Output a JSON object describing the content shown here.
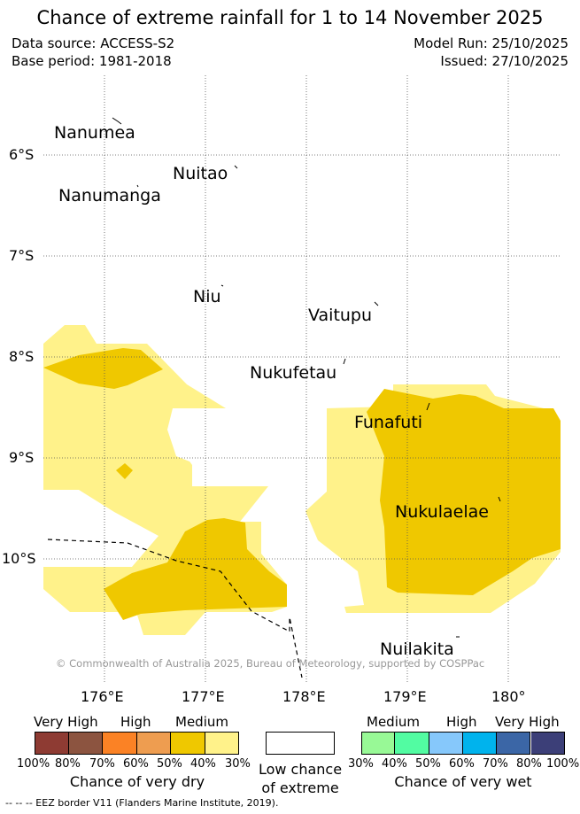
{
  "title": "Chance of extreme rainfall for 1 to 14 November 2025",
  "meta": {
    "data_source": "Data source: ACCESS-S2",
    "base_period": "Base period: 1981-2018",
    "model_run": "Model Run: 25/10/2025",
    "issued": "Issued: 27/10/2025"
  },
  "axes": {
    "lat_labels": [
      "6°S",
      "7°S",
      "8°S",
      "9°S",
      "10°S"
    ],
    "lon_labels": [
      "176°E",
      "177°E",
      "178°E",
      "179°E",
      "180°"
    ]
  },
  "places": [
    "Nanumea",
    "Nuitao",
    "Nanumanga",
    "Niu",
    "Vaitupu",
    "Nukufetau",
    "Funafuti",
    "Nukulaelae",
    "Nuilakita"
  ],
  "copyright": "© Commonwealth of Australia 2025, Bureau of Meteorology, supported by COSPPac",
  "legend": {
    "dry": {
      "levels": [
        "Very High",
        "High",
        "Medium"
      ],
      "ticks": [
        "100%",
        "80%",
        "70%",
        "60%",
        "50%",
        "40%",
        "30%"
      ],
      "colors": [
        "#8e3b33",
        "#8c5440",
        "#fb8225",
        "#ee9d50",
        "#efc800",
        "#fff28a"
      ],
      "caption": "Chance of very dry"
    },
    "low": {
      "caption_line1": "Low chance",
      "caption_line2": "of extreme"
    },
    "wet": {
      "levels": [
        "Medium",
        "High",
        "Very High"
      ],
      "ticks": [
        "30%",
        "40%",
        "50%",
        "60%",
        "70%",
        "80%",
        "100%"
      ],
      "colors": [
        "#98f996",
        "#52fca2",
        "#86c8fb",
        "#00b3ed",
        "#3b66a6",
        "#3c3f78"
      ],
      "caption": "Chance of very wet"
    }
  },
  "eez_note": "-- -- -- EEZ border V11 (Flanders Marine Institute, 2019)."
}
